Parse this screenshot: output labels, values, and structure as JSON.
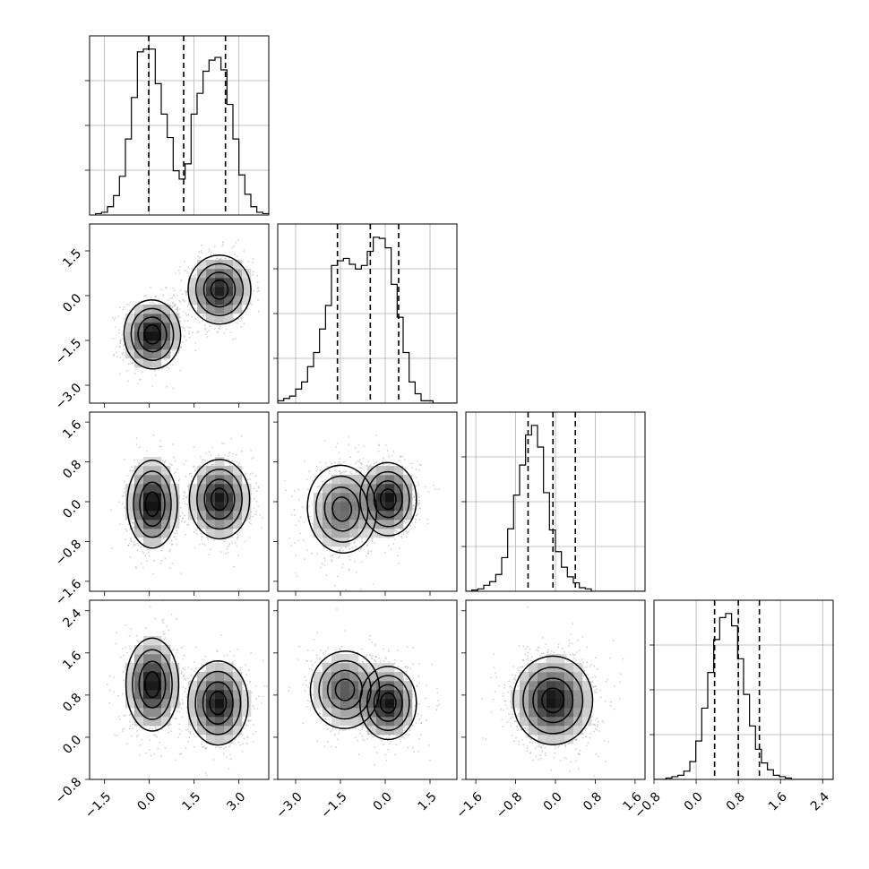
{
  "chart_data": {
    "type": "corner",
    "title": "",
    "parameters": [
      "",
      "",
      "",
      ""
    ],
    "quantiles_shown": [
      0.16,
      0.5,
      0.84
    ],
    "grid": true,
    "axes": [
      {
        "range": [
          -2.0,
          4.0
        ],
        "ticks": [
          -1.5,
          0.0,
          1.5,
          3.0
        ],
        "tick_labels": [
          "−1.5",
          "0.0",
          "1.5",
          "3.0"
        ]
      },
      {
        "range": [
          -3.6,
          2.4
        ],
        "ticks": [
          -3.0,
          -1.5,
          0.0,
          1.5
        ],
        "tick_labels": [
          "−3.0",
          "−1.5",
          "0.0",
          "1.5"
        ]
      },
      {
        "range": [
          -1.8,
          1.8
        ],
        "ticks": [
          -1.6,
          -0.8,
          0.0,
          0.8,
          1.6
        ],
        "tick_labels": [
          "−1.6",
          "−0.8",
          "0.0",
          "0.8",
          "1.6"
        ]
      },
      {
        "range": [
          -0.8,
          2.6
        ],
        "ticks": [
          -0.8,
          0.0,
          0.8,
          1.6,
          2.4
        ],
        "tick_labels": [
          "−0.8",
          "0.0",
          "0.8",
          "1.6",
          "2.4"
        ]
      }
    ],
    "marginals": [
      {
        "quantiles": [
          -0.02,
          1.15,
          2.55
        ],
        "bins": {
          "start": -1.8,
          "width": 0.2,
          "counts": [
            1,
            2,
            6,
            14,
            28,
            55,
            85,
            118,
            120,
            120,
            95,
            73,
            56,
            32,
            26,
            37,
            73,
            88,
            104,
            112,
            114,
            105,
            80,
            55,
            29,
            15,
            6,
            2,
            1,
            0
          ]
        }
      },
      {
        "quantiles": [
          -1.6,
          -0.5,
          0.45
        ],
        "bins": {
          "start": -3.6,
          "width": 0.2,
          "counts": [
            2,
            4,
            6,
            12,
            18,
            31,
            43,
            63,
            83,
            117,
            121,
            123,
            118,
            114,
            117,
            129,
            141,
            140,
            132,
            101,
            73,
            43,
            18,
            8,
            2,
            2,
            0,
            0,
            0,
            0
          ]
        }
      },
      {
        "quantiles": [
          -0.55,
          -0.05,
          0.4
        ],
        "bins": {
          "start": -1.8,
          "width": 0.12,
          "counts": [
            0,
            1,
            2,
            5,
            8,
            14,
            28,
            52,
            80,
            105,
            130,
            138,
            120,
            82,
            51,
            33,
            20,
            12,
            7,
            3,
            2,
            0,
            0,
            0,
            0,
            0,
            0,
            0,
            0,
            0
          ]
        }
      },
      {
        "quantiles": [
          0.35,
          0.8,
          1.2
        ],
        "bins": {
          "start": -0.8,
          "width": 0.1133,
          "counts": [
            0,
            0,
            1,
            2,
            3,
            6,
            13,
            28,
            52,
            78,
            102,
            118,
            121,
            112,
            88,
            62,
            39,
            22,
            12,
            7,
            3,
            2,
            1,
            0,
            0,
            0,
            0,
            0,
            0,
            0
          ]
        }
      }
    ],
    "pairs": [
      {
        "x": 0,
        "y": 1,
        "modes": [
          {
            "mean": [
              0.1,
              -1.3
            ],
            "sd": [
              0.45,
              0.55
            ],
            "rho": 0.1,
            "weight": 1.0
          },
          {
            "mean": [
              2.35,
              0.2
            ],
            "sd": [
              0.5,
              0.55
            ],
            "rho": 0.05,
            "weight": 1.0
          }
        ]
      },
      {
        "x": 0,
        "y": 2,
        "modes": [
          {
            "mean": [
              0.1,
              -0.05
            ],
            "sd": [
              0.4,
              0.42
            ],
            "rho": 0.0,
            "weight": 1.0
          },
          {
            "mean": [
              2.35,
              0.05
            ],
            "sd": [
              0.48,
              0.38
            ],
            "rho": 0.0,
            "weight": 1.0
          }
        ]
      },
      {
        "x": 1,
        "y": 2,
        "modes": [
          {
            "mean": [
              -1.45,
              -0.15
            ],
            "sd": [
              0.55,
              0.42
            ],
            "rho": 0.15,
            "weight": 0.9
          },
          {
            "mean": [
              0.1,
              0.05
            ],
            "sd": [
              0.45,
              0.35
            ],
            "rho": 0.05,
            "weight": 1.0
          }
        ]
      },
      {
        "x": 0,
        "y": 3,
        "modes": [
          {
            "mean": [
              0.1,
              1.0
            ],
            "sd": [
              0.42,
              0.42
            ],
            "rho": 0.0,
            "weight": 1.0
          },
          {
            "mean": [
              2.3,
              0.65
            ],
            "sd": [
              0.48,
              0.38
            ],
            "rho": 0.0,
            "weight": 1.0
          }
        ]
      },
      {
        "x": 1,
        "y": 3,
        "modes": [
          {
            "mean": [
              -1.35,
              0.9
            ],
            "sd": [
              0.55,
              0.35
            ],
            "rho": -0.1,
            "weight": 0.9
          },
          {
            "mean": [
              0.1,
              0.65
            ],
            "sd": [
              0.45,
              0.33
            ],
            "rho": 0.0,
            "weight": 1.0
          }
        ]
      },
      {
        "x": 2,
        "y": 3,
        "modes": [
          {
            "mean": [
              -0.05,
              0.7
            ],
            "sd": [
              0.38,
              0.4
            ],
            "rho": 0.0,
            "weight": 1.0
          }
        ]
      }
    ]
  }
}
